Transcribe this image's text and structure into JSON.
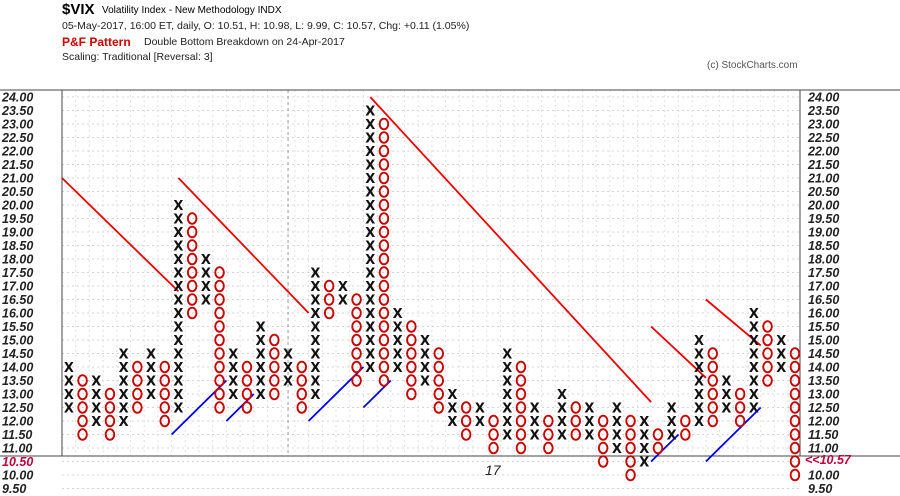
{
  "header": {
    "symbol": "$VIX",
    "name": "Volatility Index - New Methodology  INDX",
    "quote": "05-May-2017, 16:00 ET, daily, O: 10.51, H: 10.98, L: 9.99, C: 10.57, Chg: +0.11 (1.05%)",
    "pf_label": "P&F Pattern",
    "pf_signal": "Double Bottom Breakdown on 24-Apr-2017",
    "scaling": "Scaling: Traditional [Reversal: 3]",
    "copyright": "(c) StockCharts.com"
  },
  "colors": {
    "x_symbol": "#111111",
    "o_symbol": "#c80000",
    "resistance_line": "#ee0000",
    "support_line": "#0000ee",
    "last_price": "#c0003a"
  },
  "chart_data": {
    "type": "point-and-figure",
    "box_size": 0.5,
    "reversal": 3,
    "ylim": [
      9.5,
      24.0
    ],
    "y_ticks": [
      "9.50",
      "10.00",
      "10.50",
      "11.00",
      "11.50",
      "12.00",
      "12.50",
      "13.00",
      "13.50",
      "14.00",
      "14.50",
      "15.00",
      "15.50",
      "16.00",
      "16.50",
      "17.00",
      "17.50",
      "18.00",
      "18.50",
      "19.00",
      "19.50",
      "20.00",
      "20.50",
      "21.00",
      "21.50",
      "22.00",
      "22.50",
      "23.00",
      "23.50",
      "24.00"
    ],
    "left_highlight_tick": "10.50",
    "last_price_label": "<<10.57",
    "last_price": 10.57,
    "date_marker": {
      "label": "17",
      "column": 16
    },
    "columns": [
      {
        "type": "X",
        "low": 12.5,
        "high": 14.0
      },
      {
        "type": "O",
        "low": 11.5,
        "high": 13.5
      },
      {
        "type": "X",
        "low": 12.0,
        "high": 13.5
      },
      {
        "type": "O",
        "low": 11.5,
        "high": 13.0
      },
      {
        "type": "X",
        "low": 12.0,
        "high": 14.5
      },
      {
        "type": "O",
        "low": 12.5,
        "high": 14.0
      },
      {
        "type": "X",
        "low": 13.0,
        "high": 14.5
      },
      {
        "type": "O",
        "low": 12.0,
        "high": 14.0
      },
      {
        "type": "X",
        "low": 12.5,
        "high": 20.0
      },
      {
        "type": "O",
        "low": 16.0,
        "high": 19.5
      },
      {
        "type": "X",
        "low": 16.5,
        "high": 18.0
      },
      {
        "type": "O",
        "low": 12.5,
        "high": 17.5
      },
      {
        "type": "X",
        "low": 13.0,
        "high": 14.5
      },
      {
        "type": "O",
        "low": 12.5,
        "high": 14.0
      },
      {
        "type": "X",
        "low": 13.0,
        "high": 15.5
      },
      {
        "type": "O",
        "low": 13.0,
        "high": 15.0
      },
      {
        "type": "X",
        "low": 13.5,
        "high": 14.5
      },
      {
        "type": "O",
        "low": 12.5,
        "high": 14.0
      },
      {
        "type": "X",
        "low": 13.0,
        "high": 17.5
      },
      {
        "type": "O",
        "low": 16.0,
        "high": 17.0
      },
      {
        "type": "X",
        "low": 16.5,
        "high": 17.0
      },
      {
        "type": "O",
        "low": 13.5,
        "high": 16.5
      },
      {
        "type": "X",
        "low": 14.0,
        "high": 23.5
      },
      {
        "type": "O",
        "low": 13.5,
        "high": 23.0
      },
      {
        "type": "X",
        "low": 14.0,
        "high": 16.0
      },
      {
        "type": "O",
        "low": 13.0,
        "high": 15.5
      },
      {
        "type": "X",
        "low": 13.5,
        "high": 15.0
      },
      {
        "type": "O",
        "low": 12.5,
        "high": 14.5
      },
      {
        "type": "X",
        "low": 12.0,
        "high": 13.0
      },
      {
        "type": "O",
        "low": 11.5,
        "high": 12.5
      },
      {
        "type": "X",
        "low": 12.0,
        "high": 12.5
      },
      {
        "type": "O",
        "low": 11.0,
        "high": 12.0
      },
      {
        "type": "X",
        "low": 11.5,
        "high": 14.5
      },
      {
        "type": "O",
        "low": 11.0,
        "high": 14.0
      },
      {
        "type": "X",
        "low": 11.5,
        "high": 12.5
      },
      {
        "type": "O",
        "low": 11.0,
        "high": 12.0
      },
      {
        "type": "X",
        "low": 11.5,
        "high": 13.0
      },
      {
        "type": "O",
        "low": 11.5,
        "high": 12.5
      },
      {
        "type": "X",
        "low": 11.5,
        "high": 12.5
      },
      {
        "type": "O",
        "low": 10.5,
        "high": 12.0
      },
      {
        "type": "X",
        "low": 11.0,
        "high": 12.5
      },
      {
        "type": "O",
        "low": 10.0,
        "high": 12.0
      },
      {
        "type": "X",
        "low": 10.5,
        "high": 12.0
      },
      {
        "type": "O",
        "low": 11.0,
        "high": 11.5
      },
      {
        "type": "X",
        "low": 11.5,
        "high": 12.5
      },
      {
        "type": "O",
        "low": 11.5,
        "high": 12.0
      },
      {
        "type": "X",
        "low": 12.0,
        "high": 15.0
      },
      {
        "type": "O",
        "low": 12.0,
        "high": 14.5
      },
      {
        "type": "X",
        "low": 12.5,
        "high": 13.5
      },
      {
        "type": "O",
        "low": 12.0,
        "high": 13.0
      },
      {
        "type": "X",
        "low": 12.5,
        "high": 16.0
      },
      {
        "type": "O",
        "low": 13.5,
        "high": 15.5
      },
      {
        "type": "X",
        "low": 14.0,
        "high": 15.0
      },
      {
        "type": "O",
        "low": 10.0,
        "high": 14.5
      }
    ],
    "trendlines": [
      {
        "kind": "resistance",
        "from": {
          "col": -0.5,
          "price": 21.0
        },
        "to": {
          "col": 8.0,
          "price": 16.8
        }
      },
      {
        "kind": "resistance",
        "from": {
          "col": 8.0,
          "price": 21.0
        },
        "to": {
          "col": 17.5,
          "price": 16.0
        }
      },
      {
        "kind": "resistance",
        "from": {
          "col": 22.0,
          "price": 24.0
        },
        "to": {
          "col": 42.5,
          "price": 12.7
        }
      },
      {
        "kind": "resistance",
        "from": {
          "col": 42.5,
          "price": 15.5
        },
        "to": {
          "col": 46.5,
          "price": 13.6
        }
      },
      {
        "kind": "resistance",
        "from": {
          "col": 46.5,
          "price": 16.5
        },
        "to": {
          "col": 50.5,
          "price": 14.8
        }
      },
      {
        "kind": "support",
        "from": {
          "col": 7.5,
          "price": 11.5
        },
        "to": {
          "col": 11.5,
          "price": 13.5
        }
      },
      {
        "kind": "support",
        "from": {
          "col": 11.5,
          "price": 12.0
        },
        "to": {
          "col": 13.5,
          "price": 13.0
        }
      },
      {
        "kind": "support",
        "from": {
          "col": 17.5,
          "price": 12.0
        },
        "to": {
          "col": 21.5,
          "price": 14.0
        }
      },
      {
        "kind": "support",
        "from": {
          "col": 21.5,
          "price": 12.5
        },
        "to": {
          "col": 23.5,
          "price": 13.5
        }
      },
      {
        "kind": "support",
        "from": {
          "col": 42.5,
          "price": 10.5
        },
        "to": {
          "col": 44.5,
          "price": 11.5
        }
      },
      {
        "kind": "support",
        "from": {
          "col": 46.5,
          "price": 10.5
        },
        "to": {
          "col": 50.5,
          "price": 12.5
        }
      }
    ]
  }
}
